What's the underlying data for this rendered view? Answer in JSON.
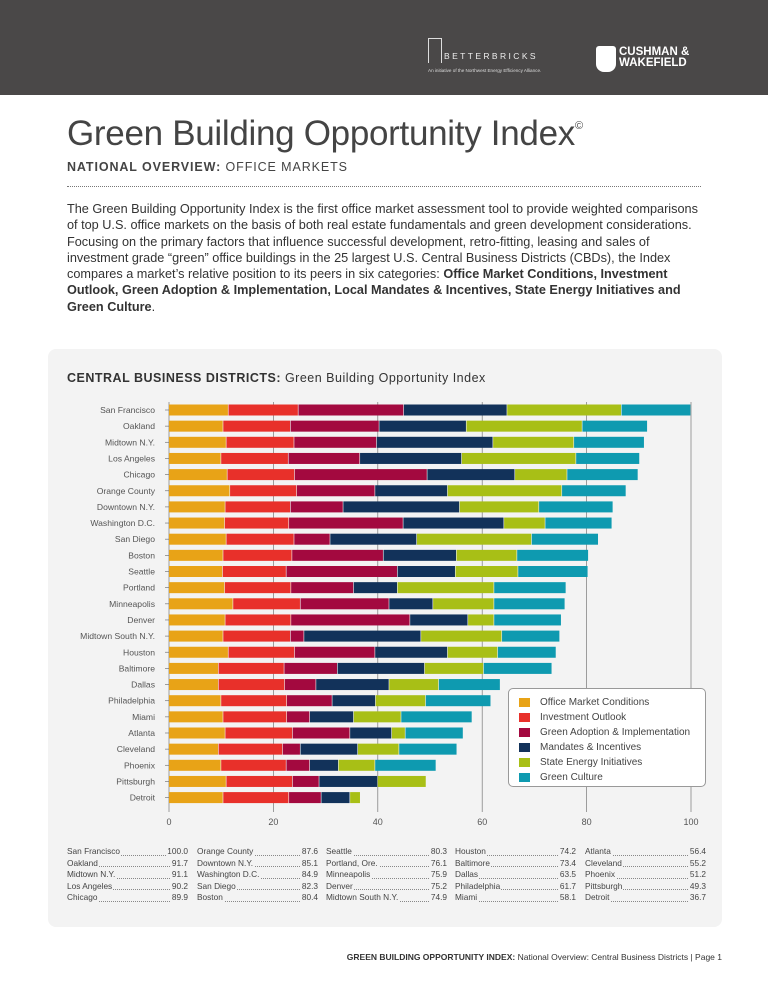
{
  "header": {
    "betterbricks_name": "BETTERBRICKS",
    "betterbricks_tagline": "An initiative of the Northwest Energy Efficiency Alliance.",
    "cushman_line1": "CUSHMAN &",
    "cushman_line2": "WAKEFIELD"
  },
  "title": "Green Building Opportunity Index",
  "copyright": "©",
  "subtitle_bold": "NATIONAL OVERVIEW:",
  "subtitle_rest": " OFFICE MARKETS",
  "intro": "The Green Building Opportunity Index is the first office market assessment tool to provide weighted comparisons of top U.S. office markets on the basis of both real estate fundamentals and green development considerations. Focusing on the primary factors that influence successful development, retro-fitting, leasing and sales of investment grade “green” office buildings in the 25 largest U.S. Central Business Districts (CBDs), the Index compares a market’s relative position to its peers in six categories: ",
  "intro_bold": "Office Market Conditions, Investment Outlook, Green Adoption & Implementation, Local Mandates & Incentives, State Energy Initiatives and Green Culture",
  "intro_end": ".",
  "chart_title_bold": "CENTRAL BUSINESS DISTRICTS:",
  "chart_title_rest": " Green Building Opportunity Index",
  "chart_data": {
    "type": "bar",
    "orientation": "horizontal",
    "stacked": true,
    "xlim": [
      0,
      100
    ],
    "xticks": [
      "0",
      "20",
      "40",
      "60",
      "80",
      "100"
    ],
    "grid": true,
    "legend_position": "bottom-right",
    "categories": [
      "San Francisco",
      "Oakland",
      "Midtown N.Y.",
      "Los Angeles",
      "Chicago",
      "Orange County",
      "Downtown N.Y.",
      "Washington D.C.",
      "San Diego",
      "Boston",
      "Seattle",
      "Portland",
      "Minneapolis",
      "Denver",
      "Midtown South N.Y.",
      "Houston",
      "Baltimore",
      "Dallas",
      "Philadelphia",
      "Miami",
      "Atlanta",
      "Cleveland",
      "Phoenix",
      "Pittsburgh",
      "Detroit"
    ],
    "series": [
      {
        "name": "Office Market Conditions",
        "color": "#e8a317",
        "values": [
          11.4,
          10.4,
          11.0,
          10.0,
          11.2,
          11.7,
          10.8,
          10.7,
          11.0,
          10.4,
          10.3,
          10.7,
          12.3,
          10.8,
          10.4,
          11.4,
          9.5,
          9.5,
          10.0,
          10.4,
          10.8,
          9.5,
          10.0,
          11.0,
          10.4
        ]
      },
      {
        "name": "Investment Outlook",
        "color": "#e8302a",
        "values": [
          13.4,
          12.9,
          13.0,
          12.9,
          12.9,
          12.8,
          12.5,
          12.3,
          13.0,
          13.2,
          12.2,
          12.7,
          12.9,
          12.6,
          12.9,
          12.7,
          12.6,
          12.7,
          12.6,
          12.2,
          12.9,
          12.3,
          12.5,
          12.7,
          12.6
        ]
      },
      {
        "name": "Green Adoption & Implementation",
        "color": "#a3093f",
        "values": [
          20.2,
          17.0,
          15.8,
          13.7,
          25.4,
          15.0,
          10.1,
          21.9,
          6.9,
          17.5,
          21.3,
          12.0,
          17.0,
          22.8,
          2.6,
          15.4,
          10.2,
          6.0,
          8.7,
          4.4,
          11.0,
          3.4,
          4.5,
          5.1,
          6.2
        ]
      },
      {
        "name": "Mandates & Incentives",
        "color": "#12325a",
        "values": [
          19.8,
          16.7,
          22.3,
          19.5,
          16.8,
          13.9,
          22.3,
          19.3,
          16.6,
          14.0,
          11.1,
          8.4,
          8.4,
          11.1,
          22.4,
          13.9,
          16.7,
          14.0,
          8.3,
          8.4,
          8.0,
          11.0,
          5.5,
          11.2,
          5.5
        ]
      },
      {
        "name": "State Energy Initiatives",
        "color": "#a8bf16",
        "values": [
          21.9,
          22.2,
          15.5,
          21.9,
          10.0,
          21.9,
          15.2,
          7.9,
          22.0,
          11.6,
          12.0,
          18.5,
          11.7,
          5.0,
          15.5,
          9.6,
          11.3,
          9.5,
          9.6,
          9.1,
          2.6,
          7.9,
          7.0,
          9.3,
          2.0
        ]
      },
      {
        "name": "Green Culture",
        "color": "#0e9ab0",
        "values": [
          13.3,
          12.5,
          13.5,
          12.2,
          13.6,
          12.3,
          14.2,
          12.8,
          12.8,
          13.7,
          13.4,
          13.8,
          13.6,
          12.9,
          11.1,
          11.2,
          13.1,
          11.8,
          12.5,
          13.6,
          11.1,
          11.1,
          11.7,
          0,
          0
        ]
      }
    ]
  },
  "scores": [
    [
      [
        "San Francisco",
        "100.0"
      ],
      [
        "Oakland",
        "91.7"
      ],
      [
        "Midtown N.Y.",
        "91.1"
      ],
      [
        "Los Angeles",
        "90.2"
      ],
      [
        "Chicago",
        "89.9"
      ]
    ],
    [
      [
        "Orange County",
        "87.6"
      ],
      [
        "Downtown N.Y.",
        "85.1"
      ],
      [
        "Washington D.C.",
        "84.9"
      ],
      [
        "San Diego",
        "82.3"
      ],
      [
        "Boston",
        "80.4"
      ]
    ],
    [
      [
        "Seattle",
        "80.3"
      ],
      [
        "Portland, Ore.",
        "76.1"
      ],
      [
        "Minneapolis",
        "75.9"
      ],
      [
        "Denver",
        "75.2"
      ],
      [
        "Midtown South N.Y.",
        "74.9"
      ]
    ],
    [
      [
        "Houston",
        "74.2"
      ],
      [
        "Baltimore",
        "73.4"
      ],
      [
        "Dallas",
        "63.5"
      ],
      [
        "Philadelphia",
        "61.7"
      ],
      [
        "Miami",
        "58.1"
      ]
    ],
    [
      [
        "Atlanta",
        "56.4"
      ],
      [
        "Cleveland",
        "55.2"
      ],
      [
        "Phoenix",
        "51.2"
      ],
      [
        "Pittsburgh",
        "49.3"
      ],
      [
        "Detroit",
        "36.7"
      ]
    ]
  ],
  "footer": {
    "bold": "GREEN BUILDING OPPORTUNITY INDEX:",
    "rest": " National Overview: Central Business Districts  |  Page 1"
  }
}
